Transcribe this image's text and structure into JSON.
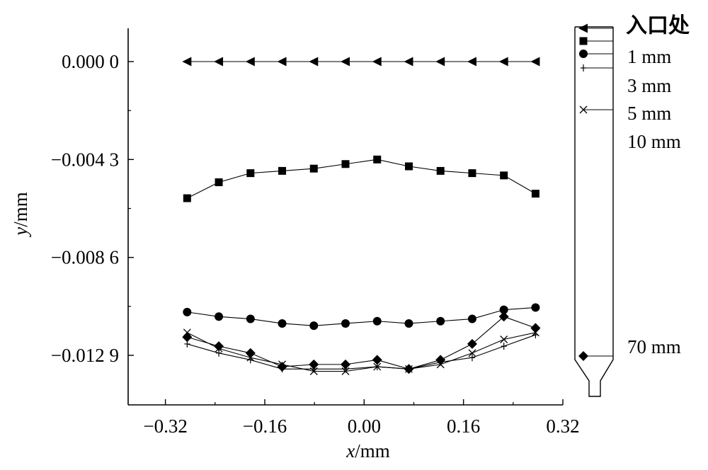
{
  "chart_data": {
    "type": "line",
    "xlabel": {
      "var": "x",
      "unit": "/mm"
    },
    "ylabel": {
      "var": "y",
      "unit": "/mm"
    },
    "xlim": [
      -0.38,
      0.32
    ],
    "ylim": [
      -0.0155,
      0.0
    ],
    "x_ticks": [
      -0.32,
      -0.16,
      0.0,
      0.16,
      0.32
    ],
    "x_tick_labels": [
      "−0.32",
      "−0.16",
      "0.00",
      "0.16",
      "0.32"
    ],
    "y_ticks": [
      0.0,
      -0.0043,
      -0.0086,
      -0.0129
    ],
    "y_tick_labels": [
      "0.000 0",
      "−0.004 3",
      "−0.008 6",
      "−0.012 9"
    ],
    "legend_placement": "right",
    "x": [
      -0.285,
      -0.234,
      -0.183,
      -0.132,
      -0.081,
      -0.03,
      0.021,
      0.072,
      0.123,
      0.174,
      0.225,
      0.276
    ],
    "series": [
      {
        "name": "入口处",
        "marker": "triangle-left",
        "values": [
          0.0,
          0.0,
          0.0,
          0.0,
          0.0,
          0.0,
          0.0,
          0.0,
          0.0,
          0.0,
          0.0,
          0.0
        ]
      },
      {
        "name": "1 mm",
        "marker": "square",
        "values": [
          -0.006,
          -0.0053,
          -0.0049,
          -0.0048,
          -0.0047,
          -0.0045,
          -0.0043,
          -0.0046,
          -0.0048,
          -0.0049,
          -0.005,
          -0.0058
        ]
      },
      {
        "name": "3 mm",
        "marker": "circle",
        "values": [
          -0.011,
          -0.0112,
          -0.0113,
          -0.0115,
          -0.0116,
          -0.0115,
          -0.0114,
          -0.0115,
          -0.0114,
          -0.0113,
          -0.0109,
          -0.0108
        ]
      },
      {
        "name": "5 mm",
        "marker": "tick",
        "values": [
          -0.0124,
          -0.0128,
          -0.0131,
          -0.0135,
          -0.0135,
          -0.0135,
          -0.0134,
          -0.0135,
          -0.0132,
          -0.013,
          -0.0125,
          -0.012
        ]
      },
      {
        "name": "10 mm",
        "marker": "x",
        "values": [
          -0.0119,
          -0.0126,
          -0.013,
          -0.0133,
          -0.0136,
          -0.0136,
          -0.0134,
          -0.0135,
          -0.0133,
          -0.0128,
          -0.0122,
          -0.0119
        ]
      },
      {
        "name": "70 mm",
        "marker": "diamond",
        "values": [
          -0.0121,
          -0.0125,
          -0.0128,
          -0.0134,
          -0.0133,
          -0.0133,
          -0.0131,
          -0.0135,
          -0.0131,
          -0.0124,
          -0.0112,
          -0.0117
        ]
      }
    ],
    "legend_markers": [
      "triangle-left",
      "square",
      "circle",
      "tick",
      "x",
      "diamond"
    ]
  }
}
